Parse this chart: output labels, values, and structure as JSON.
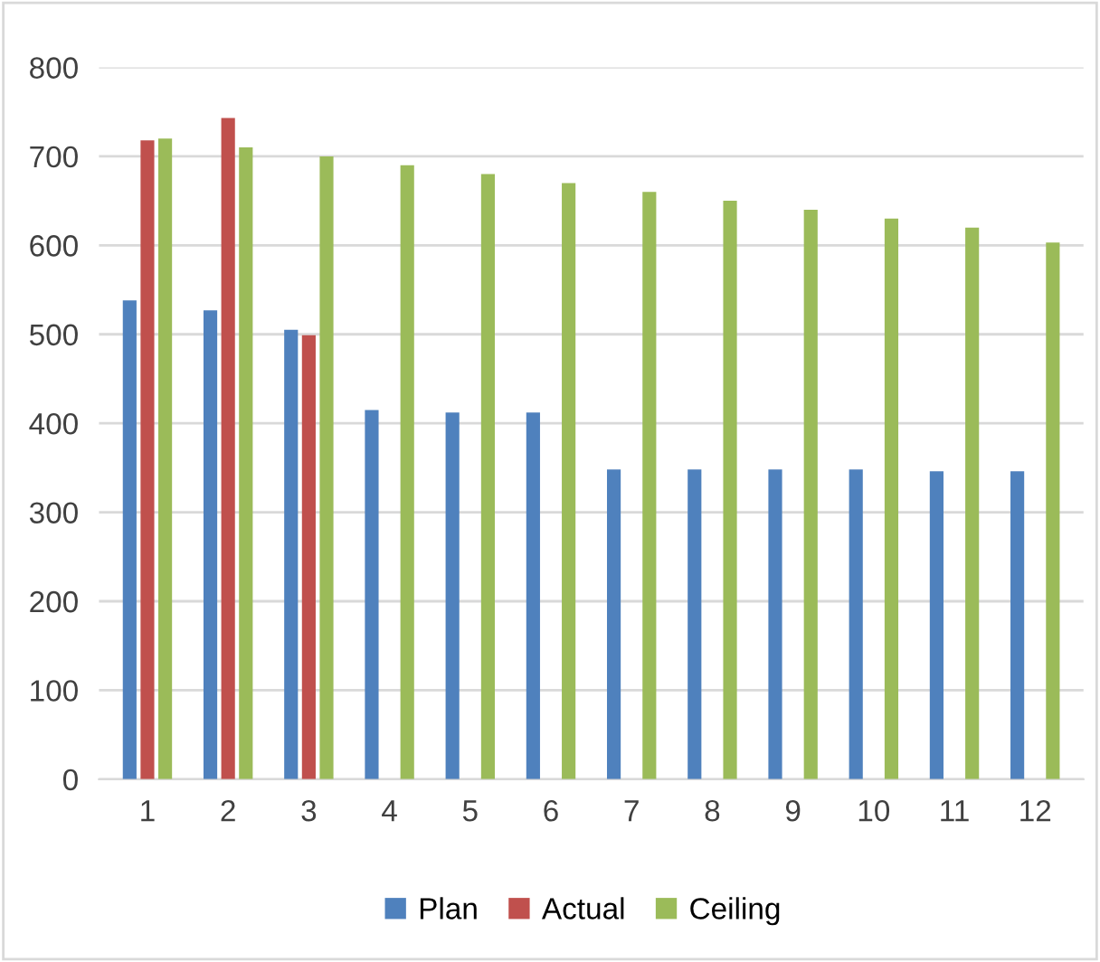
{
  "chart_data": {
    "type": "bar",
    "categories": [
      "1",
      "2",
      "3",
      "4",
      "5",
      "6",
      "7",
      "8",
      "9",
      "10",
      "11",
      "12"
    ],
    "series": [
      {
        "name": "Plan",
        "color": "#4f81bd",
        "values": [
          538,
          527,
          505,
          415,
          412,
          412,
          348,
          348,
          348,
          348,
          346,
          346
        ]
      },
      {
        "name": "Actual",
        "color": "#c0504d",
        "values": [
          718,
          743,
          499,
          null,
          null,
          null,
          null,
          null,
          null,
          null,
          null,
          null
        ]
      },
      {
        "name": "Ceiling",
        "color": "#9bbb59",
        "values": [
          720,
          710,
          700,
          690,
          680,
          670,
          660,
          650,
          640,
          630,
          620,
          603
        ]
      }
    ],
    "ylim": [
      0,
      800
    ],
    "yticks": [
      0,
      100,
      200,
      300,
      400,
      500,
      600,
      700,
      800
    ],
    "grid": "y",
    "legend": "bottom"
  }
}
